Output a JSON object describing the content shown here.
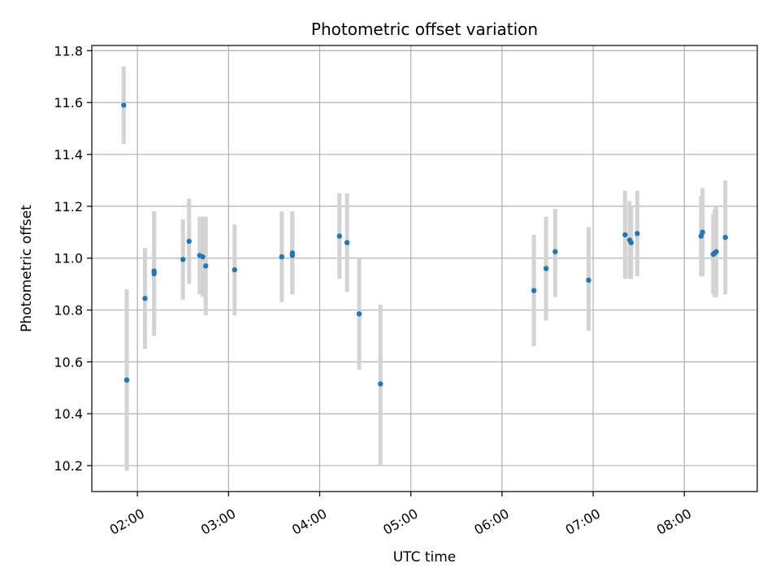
{
  "chart_data": {
    "type": "scatter",
    "title": "Photometric offset variation",
    "xlabel": "UTC time",
    "ylabel": "Photometric offset",
    "xlim": [
      "01:30",
      "08:48"
    ],
    "ylim": [
      10.1,
      11.82
    ],
    "x_ticks": [
      "02:00",
      "03:00",
      "04:00",
      "05:00",
      "06:00",
      "07:00",
      "08:00"
    ],
    "y_ticks": [
      10.2,
      10.4,
      10.6,
      10.8,
      11.0,
      11.2,
      11.4,
      11.6,
      11.8
    ],
    "grid": true,
    "legend": "none",
    "colors": {
      "point": "#1f77b4",
      "errorbar": "#d3d3d3",
      "grid": "#b0b0b0",
      "axes": "#000000"
    },
    "series": [
      {
        "points": [
          {
            "x": "01:51",
            "y": 11.59,
            "ylow": 11.44,
            "yhigh": 11.74
          },
          {
            "x": "01:53",
            "y": 10.53,
            "ylow": 10.18,
            "yhigh": 10.88
          },
          {
            "x": "01:53",
            "y": 10.53,
            "ylow": 10.23,
            "yhigh": 10.83
          },
          {
            "x": "02:05",
            "y": 10.845,
            "ylow": 10.65,
            "yhigh": 11.04
          },
          {
            "x": "02:11",
            "y": 10.94,
            "ylow": 10.7,
            "yhigh": 11.18
          },
          {
            "x": "02:11",
            "y": 10.95,
            "ylow": 10.72,
            "yhigh": 11.18
          },
          {
            "x": "02:30",
            "y": 10.995,
            "ylow": 10.84,
            "yhigh": 11.15
          },
          {
            "x": "02:34",
            "y": 11.065,
            "ylow": 10.9,
            "yhigh": 11.23
          },
          {
            "x": "02:41",
            "y": 11.01,
            "ylow": 10.86,
            "yhigh": 11.16
          },
          {
            "x": "02:43",
            "y": 11.005,
            "ylow": 10.85,
            "yhigh": 11.16
          },
          {
            "x": "02:45",
            "y": 10.97,
            "ylow": 10.78,
            "yhigh": 11.16
          },
          {
            "x": "03:04",
            "y": 10.955,
            "ylow": 10.78,
            "yhigh": 11.13
          },
          {
            "x": "03:35",
            "y": 11.005,
            "ylow": 10.83,
            "yhigh": 11.18
          },
          {
            "x": "03:42",
            "y": 11.01,
            "ylow": 10.86,
            "yhigh": 11.18
          },
          {
            "x": "03:42",
            "y": 11.02,
            "ylow": 10.86,
            "yhigh": 11.18
          },
          {
            "x": "04:13",
            "y": 11.085,
            "ylow": 10.92,
            "yhigh": 11.25
          },
          {
            "x": "04:18",
            "y": 11.06,
            "ylow": 10.87,
            "yhigh": 11.25
          },
          {
            "x": "04:26",
            "y": 10.785,
            "ylow": 10.57,
            "yhigh": 11.0
          },
          {
            "x": "04:40",
            "y": 10.515,
            "ylow": 10.2,
            "yhigh": 10.82
          },
          {
            "x": "06:21",
            "y": 10.875,
            "ylow": 10.66,
            "yhigh": 11.09
          },
          {
            "x": "06:29",
            "y": 10.96,
            "ylow": 10.76,
            "yhigh": 11.16
          },
          {
            "x": "06:35",
            "y": 11.025,
            "ylow": 10.85,
            "yhigh": 11.19
          },
          {
            "x": "06:57",
            "y": 10.915,
            "ylow": 10.72,
            "yhigh": 11.12
          },
          {
            "x": "07:21",
            "y": 11.09,
            "ylow": 10.92,
            "yhigh": 11.26
          },
          {
            "x": "07:24",
            "y": 11.07,
            "ylow": 10.92,
            "yhigh": 11.22
          },
          {
            "x": "07:25",
            "y": 11.06,
            "ylow": 10.92,
            "yhigh": 11.2
          },
          {
            "x": "07:29",
            "y": 11.095,
            "ylow": 10.93,
            "yhigh": 11.26
          },
          {
            "x": "08:11",
            "y": 11.085,
            "ylow": 10.93,
            "yhigh": 11.24
          },
          {
            "x": "08:12",
            "y": 11.1,
            "ylow": 10.93,
            "yhigh": 11.27
          },
          {
            "x": "08:19",
            "y": 11.015,
            "ylow": 10.86,
            "yhigh": 11.17
          },
          {
            "x": "08:20",
            "y": 11.02,
            "ylow": 10.85,
            "yhigh": 11.19
          },
          {
            "x": "08:21",
            "y": 11.025,
            "ylow": 10.85,
            "yhigh": 11.2
          },
          {
            "x": "08:27",
            "y": 11.08,
            "ylow": 10.86,
            "yhigh": 11.3
          }
        ]
      }
    ]
  }
}
